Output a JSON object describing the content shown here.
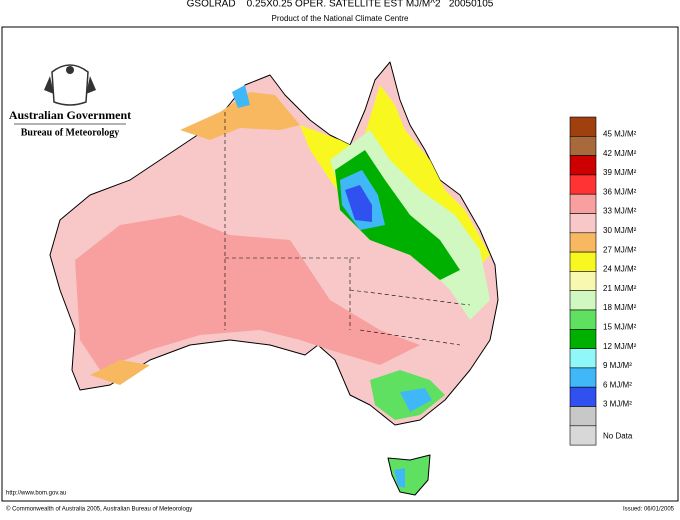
{
  "header": {
    "title": "GSOLRAD    0.25X0.25 OPER. SATELLITE EST MJ/M^2   20050105",
    "subtitle": "Product of the National Climate Centre"
  },
  "logo": {
    "line1": "Australian Government",
    "line2": "Bureau of Meteorology"
  },
  "legend": {
    "items": [
      {
        "label": "45 MJ/M²",
        "color": "#a0400f"
      },
      {
        "label": "42 MJ/M²",
        "color": "#a86a3a"
      },
      {
        "label": "39 MJ/M²",
        "color": "#cc0000"
      },
      {
        "label": "36 MJ/M²",
        "color": "#ff3333"
      },
      {
        "label": "33 MJ/M²",
        "color": "#f8a0a0"
      },
      {
        "label": "30 MJ/M²",
        "color": "#f8c8c8"
      },
      {
        "label": "27 MJ/M²",
        "color": "#f8b860"
      },
      {
        "label": "24 MJ/M²",
        "color": "#f8f820"
      },
      {
        "label": "21 MJ/M²",
        "color": "#f8f8b0"
      },
      {
        "label": "18 MJ/M²",
        "color": "#d0f8c0"
      },
      {
        "label": "15 MJ/M²",
        "color": "#60e060"
      },
      {
        "label": "12 MJ/M²",
        "color": "#00b000"
      },
      {
        "label": "9 MJ/M²",
        "color": "#90f8f8"
      },
      {
        "label": "6 MJ/M²",
        "color": "#40b8f8"
      },
      {
        "label": "3 MJ/M²",
        "color": "#3050f0"
      },
      {
        "label": "",
        "color": "#c8c8c8"
      },
      {
        "label": "No Data",
        "color": "#d8d8d8"
      }
    ]
  },
  "footer": {
    "url": "http://www.bom.gov.au",
    "copyright": "© Commonwealth of Australia 2005, Australian Bureau of Meteorology",
    "issued": "Issued: 06/01/2005"
  }
}
